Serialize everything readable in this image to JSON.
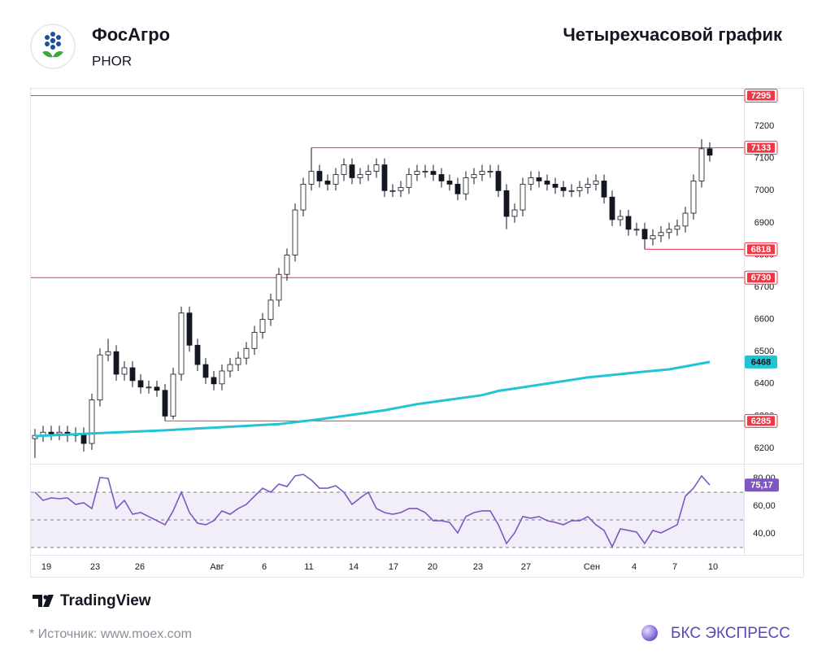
{
  "header": {
    "company": "ФосАгро",
    "ticker": "PHOR",
    "title": "Четырехчасовой график"
  },
  "footer": {
    "brand": "TradingView",
    "source": "* Источник: www.moex.com",
    "publisher": "БКС ЭКСПРЕСС"
  },
  "chart_data": [
    {
      "type": "candlestick",
      "xlim": [
        -0.5,
        83.5
      ],
      "ylim": [
        6152,
        7314
      ],
      "yticks": [
        6200,
        6300,
        6400,
        6500,
        6600,
        6700,
        6800,
        6900,
        7000,
        7100,
        7200
      ],
      "up_color": "#ffffff",
      "down_color": "#131722",
      "open": [
        6230,
        6240,
        6250,
        6245,
        6250,
        6240,
        6245,
        6215,
        6350,
        6490,
        6500,
        6430,
        6450,
        6410,
        6390,
        6390,
        6380,
        6300,
        6430,
        6620,
        6520,
        6460,
        6420,
        6400,
        6440,
        6460,
        6480,
        6510,
        6560,
        6600,
        6660,
        6740,
        6800,
        6940,
        7020,
        7060,
        7030,
        7020,
        7050,
        7080,
        7040,
        7050,
        7060,
        7080,
        7000,
        7000,
        7010,
        7050,
        7060,
        7060,
        7050,
        7030,
        7020,
        6990,
        7040,
        7050,
        7060,
        7060,
        7000,
        6920,
        6940,
        7020,
        7040,
        7030,
        7020,
        7010,
        7000,
        7000,
        7010,
        7020,
        7030,
        6980,
        6910,
        6920,
        6880,
        6880,
        6850,
        6860,
        6870,
        6880,
        6890,
        6930,
        7030,
        7130
      ],
      "high": [
        6260,
        6270,
        6270,
        6270,
        6270,
        6265,
        6265,
        6370,
        6510,
        6540,
        6520,
        6470,
        6470,
        6430,
        6410,
        6410,
        6400,
        6450,
        6640,
        6640,
        6540,
        6480,
        6440,
        6460,
        6480,
        6500,
        6530,
        6580,
        6620,
        6680,
        6760,
        6820,
        6960,
        7040,
        7133,
        7080,
        7050,
        7070,
        7100,
        7100,
        7070,
        7080,
        7100,
        7100,
        7020,
        7030,
        7070,
        7080,
        7080,
        7080,
        7070,
        7050,
        7040,
        7060,
        7070,
        7080,
        7080,
        7080,
        7020,
        6960,
        7040,
        7060,
        7060,
        7050,
        7040,
        7030,
        7020,
        7030,
        7040,
        7050,
        7050,
        7000,
        6940,
        6940,
        6900,
        6900,
        6880,
        6890,
        6900,
        6910,
        6950,
        7050,
        7160,
        7150
      ],
      "low": [
        6170,
        6220,
        6225,
        6225,
        6220,
        6220,
        6190,
        6195,
        6330,
        6470,
        6410,
        6410,
        6390,
        6370,
        6370,
        6360,
        6285,
        6290,
        6410,
        6500,
        6440,
        6400,
        6380,
        6380,
        6420,
        6440,
        6460,
        6490,
        6540,
        6580,
        6640,
        6720,
        6780,
        6920,
        7000,
        7010,
        7000,
        7000,
        7030,
        7020,
        7020,
        7030,
        7040,
        6980,
        6980,
        6980,
        6990,
        7030,
        7040,
        7030,
        7010,
        7000,
        6970,
        6970,
        7020,
        7030,
        7040,
        6980,
        6880,
        6900,
        6920,
        7000,
        7010,
        7000,
        6990,
        6980,
        6980,
        6980,
        6990,
        7000,
        6960,
        6890,
        6890,
        6860,
        6860,
        6818,
        6830,
        6840,
        6850,
        6860,
        6870,
        6910,
        7010,
        7090
      ],
      "close": [
        6240,
        6250,
        6245,
        6250,
        6240,
        6245,
        6215,
        6350,
        6490,
        6500,
        6430,
        6450,
        6410,
        6390,
        6390,
        6380,
        6300,
        6430,
        6620,
        6520,
        6460,
        6420,
        6400,
        6440,
        6460,
        6480,
        6510,
        6560,
        6600,
        6660,
        6740,
        6800,
        6940,
        7020,
        7060,
        7030,
        7020,
        7050,
        7080,
        7040,
        7050,
        7060,
        7080,
        7000,
        7000,
        7010,
        7050,
        7060,
        7060,
        7050,
        7030,
        7020,
        6990,
        7040,
        7050,
        7060,
        7060,
        7000,
        6920,
        6940,
        7020,
        7040,
        7030,
        7020,
        7010,
        7000,
        7000,
        7010,
        7020,
        7030,
        6980,
        6910,
        6920,
        6880,
        6880,
        6850,
        6860,
        6870,
        6880,
        6890,
        6930,
        7030,
        7130,
        7110
      ],
      "moving_average": {
        "color": "#22c4d4",
        "x": [
          0,
          7,
          16,
          30,
          35,
          43,
          47,
          55,
          57,
          68,
          75,
          78,
          83
        ],
        "values": [
          6238,
          6246,
          6256,
          6275,
          6290,
          6318,
          6337,
          6365,
          6378,
          6420,
          6438,
          6445,
          6468
        ],
        "last_value_label": "6468"
      },
      "levels": {
        "color": "#f23645",
        "values": [
          7295,
          7133,
          6818,
          6730,
          6285
        ]
      }
    },
    {
      "type": "line",
      "color": "#7e57c2",
      "xlim": [
        -0.5,
        83.5
      ],
      "ylim": [
        25.9,
        89.4
      ],
      "yticks": [
        {
          "value": 40,
          "label": "40,00"
        },
        {
          "value": 60,
          "label": "60,00"
        },
        {
          "value": 80,
          "label": "80,00"
        }
      ],
      "levels": [
        70,
        50,
        30
      ],
      "xticks": [
        {
          "value": 1.4,
          "label": "19"
        },
        {
          "value": 7.4,
          "label": "23"
        },
        {
          "value": 12.9,
          "label": "26"
        },
        {
          "value": 22.4,
          "label": "Авг"
        },
        {
          "value": 28.2,
          "label": "6"
        },
        {
          "value": 33.7,
          "label": "11"
        },
        {
          "value": 39.2,
          "label": "14"
        },
        {
          "value": 44.1,
          "label": "17"
        },
        {
          "value": 48.9,
          "label": "20"
        },
        {
          "value": 54.5,
          "label": "23"
        },
        {
          "value": 60.4,
          "label": "27"
        },
        {
          "value": 68.5,
          "label": "Сен"
        },
        {
          "value": 73.7,
          "label": "4"
        },
        {
          "value": 78.7,
          "label": "7"
        },
        {
          "value": 83.4,
          "label": "10"
        }
      ],
      "values": [
        70,
        64.1,
        65.9,
        65.3,
        65.9,
        61.2,
        62.4,
        58.2,
        80.6,
        80,
        58.2,
        64.1,
        54.1,
        55.3,
        52.4,
        49.4,
        46.5,
        56.5,
        70,
        55.3,
        47.6,
        46.5,
        49.4,
        56.5,
        54.1,
        58.2,
        61.2,
        67.1,
        72.9,
        70,
        75.9,
        74.1,
        81.8,
        82.9,
        78.8,
        72.9,
        72.9,
        74.7,
        70,
        61.2,
        65.9,
        70,
        58.2,
        55.3,
        54.1,
        55.3,
        58.2,
        58.2,
        55.3,
        49.4,
        49.4,
        48.2,
        40.6,
        52.4,
        55.3,
        56.5,
        56.5,
        46.5,
        32.9,
        40.6,
        52.4,
        51.2,
        52.4,
        49.4,
        48.2,
        46.5,
        49.4,
        49.4,
        52.4,
        46.5,
        42.4,
        30.6,
        43.5,
        42.4,
        41.2,
        32.9,
        42.4,
        40.6,
        43.5,
        46.5,
        67.1,
        72.9,
        81.8,
        75.17
      ],
      "last_value_label": "75,17"
    }
  ]
}
